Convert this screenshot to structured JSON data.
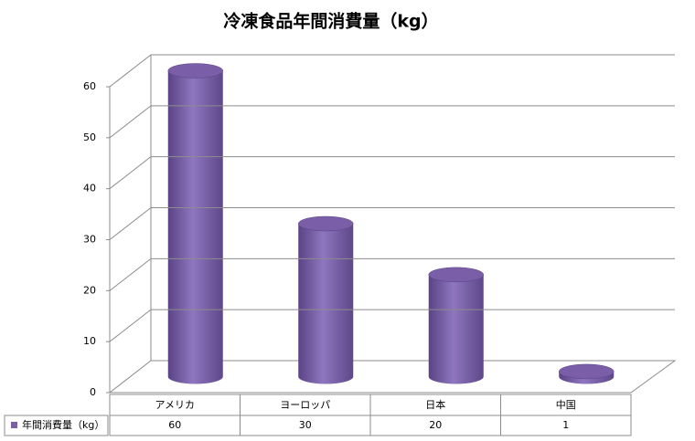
{
  "chart_data": {
    "type": "bar",
    "title": "冷凍食品年間消費量（kg）",
    "categories": [
      "アメリカ",
      "ヨーロッパ",
      "日本",
      "中国"
    ],
    "series": [
      {
        "name": "年間消費量（kg）",
        "color": "#7a5ea8",
        "values": [
          60,
          30,
          20,
          1
        ]
      }
    ],
    "ylim": [
      0,
      60
    ],
    "yticks": [
      0,
      10,
      20,
      30,
      40,
      50,
      60
    ],
    "grid": true
  }
}
